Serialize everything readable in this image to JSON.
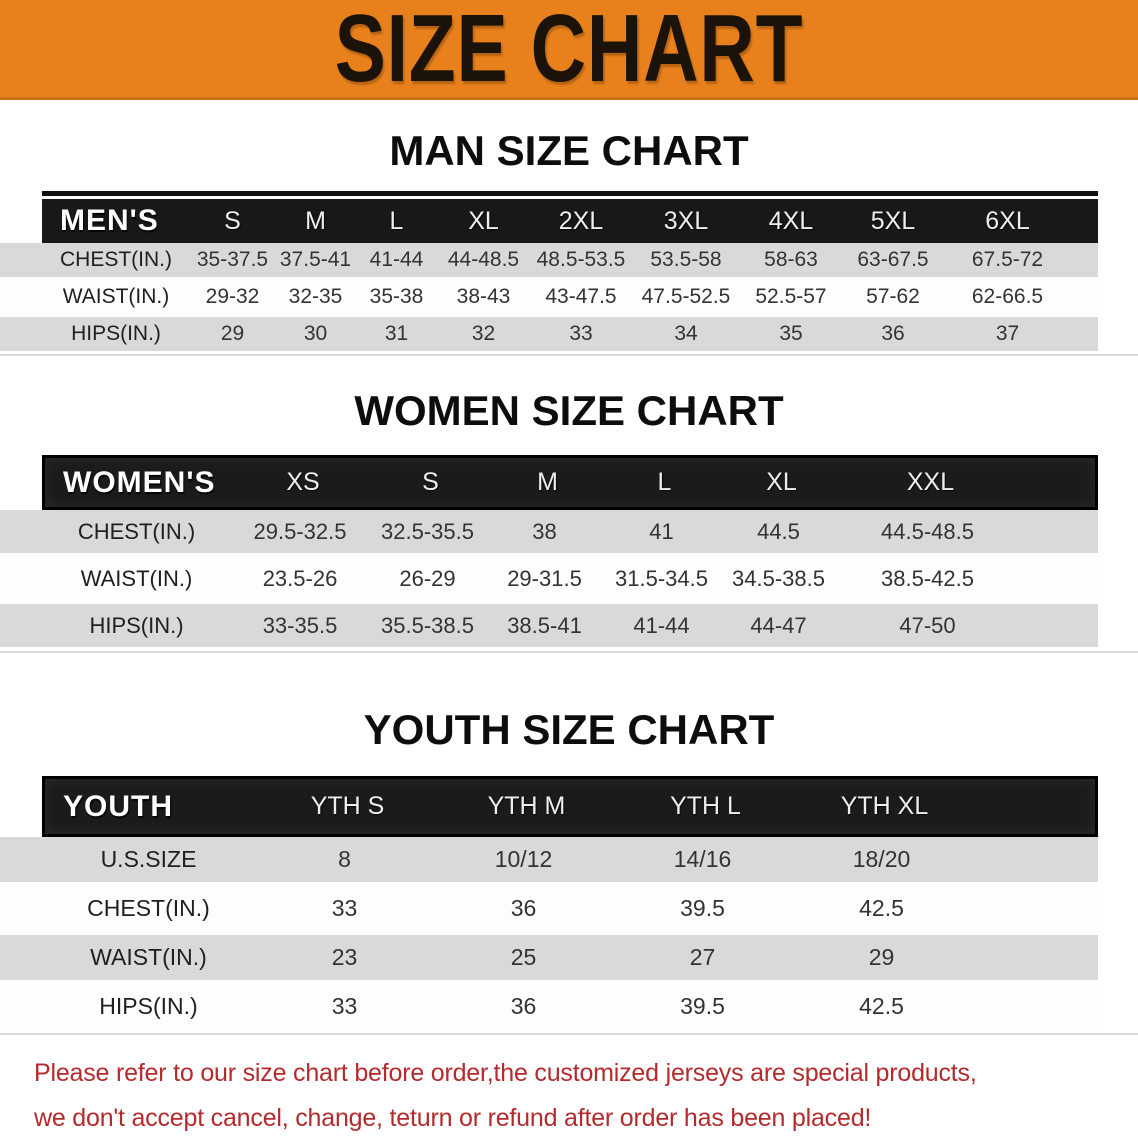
{
  "banner": {
    "title": "SIZE CHART"
  },
  "sections": [
    {
      "id": "men",
      "heading": "MAN SIZE CHART",
      "corner_label": "MEN'S",
      "columns": [
        "S",
        "M",
        "L",
        "XL",
        "2XL",
        "3XL",
        "4XL",
        "5XL",
        "6XL"
      ],
      "rows": [
        {
          "label": "CHEST(IN.)",
          "values": [
            "35-37.5",
            "37.5-41",
            "41-44",
            "44-48.5",
            "48.5-53.5",
            "53.5-58",
            "58-63",
            "63-67.5",
            "67.5-72"
          ]
        },
        {
          "label": "WAIST(IN.)",
          "values": [
            "29-32",
            "32-35",
            "35-38",
            "38-43",
            "43-47.5",
            "47.5-52.5",
            "52.5-57",
            "57-62",
            "62-66.5"
          ]
        },
        {
          "label": "HIPS(IN.)",
          "values": [
            "29",
            "30",
            "31",
            "32",
            "33",
            "34",
            "35",
            "36",
            "37"
          ]
        }
      ]
    },
    {
      "id": "women",
      "heading": "WOMEN SIZE CHART",
      "corner_label": "WOMEN'S",
      "columns": [
        "XS",
        "S",
        "M",
        "L",
        "XL",
        "XXL"
      ],
      "rows": [
        {
          "label": "CHEST(IN.)",
          "values": [
            "29.5-32.5",
            "32.5-35.5",
            "38",
            "41",
            "44.5",
            "44.5-48.5"
          ]
        },
        {
          "label": "WAIST(IN.)",
          "values": [
            "23.5-26",
            "26-29",
            "29-31.5",
            "31.5-34.5",
            "34.5-38.5",
            "38.5-42.5"
          ]
        },
        {
          "label": "HIPS(IN.)",
          "values": [
            "33-35.5",
            "35.5-38.5",
            "38.5-41",
            "41-44",
            "44-47",
            "47-50"
          ]
        }
      ]
    },
    {
      "id": "youth",
      "heading": "YOUTH SIZE CHART",
      "corner_label": "YOUTH",
      "columns": [
        "YTH S",
        "YTH M",
        "YTH L",
        "YTH XL"
      ],
      "rows": [
        {
          "label": "U.S.SIZE",
          "values": [
            "8",
            "10/12",
            "14/16",
            "18/20"
          ]
        },
        {
          "label": "CHEST(IN.)",
          "values": [
            "33",
            "36",
            "39.5",
            "42.5"
          ]
        },
        {
          "label": "WAIST(IN.)",
          "values": [
            "23",
            "25",
            "27",
            "29"
          ]
        },
        {
          "label": "HIPS(IN.)",
          "values": [
            "33",
            "36",
            "39.5",
            "42.5"
          ]
        }
      ]
    }
  ],
  "disclaimer": {
    "line1": "Please refer to our size chart before order,the customized jerseys are special products,",
    "line2": "we don't accept cancel, change, teturn or refund after order has been placed!"
  },
  "colors": {
    "banner_bg": "#E8811C",
    "header_bar": "#181818",
    "row_stripe": "#D9D9D9",
    "disclaimer_red": "#B32B2C"
  }
}
